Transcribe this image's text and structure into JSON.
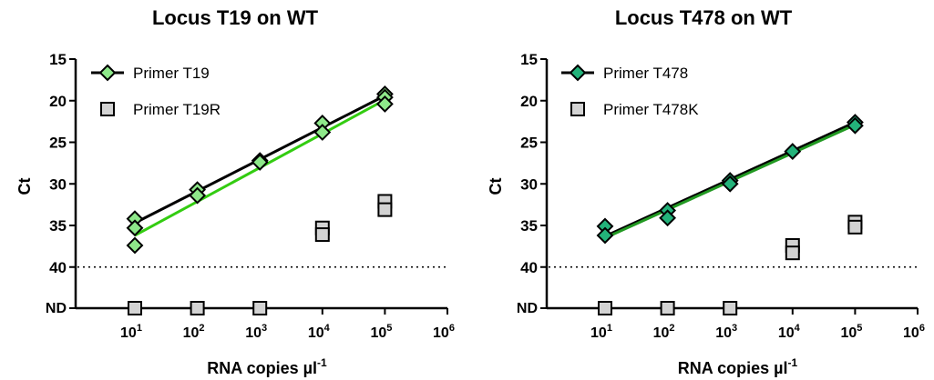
{
  "chart_data": [
    {
      "type": "scatter",
      "title": "Locus T19 on WT",
      "xlabel": "RNA copies µl",
      "xlabel_exp": "-1",
      "ylabel": "Ct",
      "x_scale": "log",
      "x_ticks": [
        10,
        100,
        1000,
        10000,
        100000,
        1000000
      ],
      "x_tick_labels": [
        {
          "base": "10",
          "exp": "1"
        },
        {
          "base": "10",
          "exp": "2"
        },
        {
          "base": "10",
          "exp": "3"
        },
        {
          "base": "10",
          "exp": "4"
        },
        {
          "base": "10",
          "exp": "5"
        },
        {
          "base": "10",
          "exp": "6"
        }
      ],
      "y_inverted": true,
      "ylim": [
        15,
        45
      ],
      "y_ticks": [
        15,
        20,
        25,
        30,
        35,
        40
      ],
      "y_nd_label": "ND",
      "y_nd_value": 45,
      "threshold": 40,
      "legend_position": "top-left",
      "series": [
        {
          "name": "Primer T19",
          "marker": "diamond",
          "color": "#8ee88a",
          "points": [
            {
              "x": 10,
              "y": 34.2
            },
            {
              "x": 10,
              "y": 35.3
            },
            {
              "x": 10,
              "y": 37.4
            },
            {
              "x": 100,
              "y": 30.7
            },
            {
              "x": 100,
              "y": 31.4
            },
            {
              "x": 1000,
              "y": 27.2
            },
            {
              "x": 1000,
              "y": 27.4
            },
            {
              "x": 10000,
              "y": 22.7
            },
            {
              "x": 10000,
              "y": 23.8
            },
            {
              "x": 100000,
              "y": 19.2
            },
            {
              "x": 100000,
              "y": 19.6
            },
            {
              "x": 100000,
              "y": 20.4
            }
          ]
        },
        {
          "name": "Primer T19R",
          "marker": "square",
          "color": "#d3d3d3",
          "points": [
            {
              "x": 10,
              "y": 45
            },
            {
              "x": 100,
              "y": 45
            },
            {
              "x": 1000,
              "y": 45
            },
            {
              "x": 10000,
              "y": 35.3
            },
            {
              "x": 10000,
              "y": 36.1
            },
            {
              "x": 100000,
              "y": 32.1
            },
            {
              "x": 100000,
              "y": 33.1
            }
          ]
        }
      ],
      "fit_lines": [
        {
          "color": "#000000",
          "y_at_x_min": 34.7,
          "y_at_x_max": 19.4
        },
        {
          "color": "#33cc11",
          "y_at_x_min": 36.2,
          "y_at_x_max": 19.9
        }
      ]
    },
    {
      "type": "scatter",
      "title": "Locus T478 on WT",
      "xlabel": "RNA copies µl",
      "xlabel_exp": "-1",
      "ylabel": "Ct",
      "x_scale": "log",
      "x_ticks": [
        10,
        100,
        1000,
        10000,
        100000,
        1000000
      ],
      "x_tick_labels": [
        {
          "base": "10",
          "exp": "1"
        },
        {
          "base": "10",
          "exp": "2"
        },
        {
          "base": "10",
          "exp": "3"
        },
        {
          "base": "10",
          "exp": "4"
        },
        {
          "base": "10",
          "exp": "5"
        },
        {
          "base": "10",
          "exp": "6"
        }
      ],
      "y_inverted": true,
      "ylim": [
        15,
        45
      ],
      "y_ticks": [
        15,
        20,
        25,
        30,
        35,
        40
      ],
      "y_nd_label": "ND",
      "y_nd_value": 45,
      "threshold": 40,
      "legend_position": "top-left",
      "series": [
        {
          "name": "Primer T478",
          "marker": "diamond",
          "color": "#23b27a",
          "points": [
            {
              "x": 10,
              "y": 35.1
            },
            {
              "x": 10,
              "y": 36.2
            },
            {
              "x": 100,
              "y": 33.2
            },
            {
              "x": 100,
              "y": 34.1
            },
            {
              "x": 1000,
              "y": 29.6
            },
            {
              "x": 1000,
              "y": 30.0
            },
            {
              "x": 10000,
              "y": 26.1
            },
            {
              "x": 100000,
              "y": 22.6
            },
            {
              "x": 100000,
              "y": 23.0
            }
          ]
        },
        {
          "name": "Primer T478K",
          "marker": "square",
          "color": "#d3d3d3",
          "points": [
            {
              "x": 10,
              "y": 45
            },
            {
              "x": 100,
              "y": 45
            },
            {
              "x": 1000,
              "y": 45
            },
            {
              "x": 10000,
              "y": 37.4
            },
            {
              "x": 10000,
              "y": 38.3
            },
            {
              "x": 100000,
              "y": 34.6
            },
            {
              "x": 100000,
              "y": 35.2
            }
          ]
        }
      ],
      "fit_lines": [
        {
          "color": "#000000",
          "y_at_x_min": 36.3,
          "y_at_x_max": 22.6
        },
        {
          "color": "#229922",
          "y_at_x_min": 36.5,
          "y_at_x_max": 22.9
        }
      ]
    }
  ]
}
